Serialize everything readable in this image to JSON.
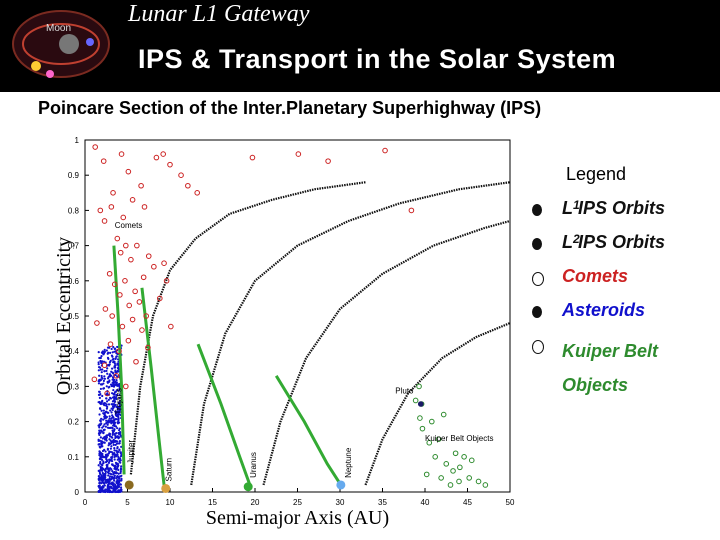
{
  "header": {
    "kicker": "Lunar L1 Gateway",
    "title": "IPS & Transport in the Solar System",
    "logo_label": "Moon"
  },
  "colors": {
    "kuiper": "#2e8b2e",
    "comets": "#cc2222",
    "asteroids": "#1010cc",
    "ips": "#111111",
    "planet_green": "#33aa33"
  },
  "chart_data": {
    "type": "scatter",
    "title": "Poincare Section of the Inter.Planetary Superhighway (IPS)",
    "xlabel": "Semi-major Axis (AU)",
    "ylabel": "Orbital Eccentricity",
    "xlim": [
      0,
      50
    ],
    "ylim": [
      0,
      1
    ],
    "xticks": [
      "0",
      "5",
      "10",
      "15",
      "20",
      "25",
      "30",
      "35",
      "40",
      "45",
      "50"
    ],
    "yticks": [
      "0",
      "0.1",
      "0.2",
      "0.3",
      "0.4",
      "0.5",
      "0.6",
      "0.7",
      "0.8",
      "0.9",
      "1"
    ],
    "annotations": [
      {
        "text": "Comets",
        "x": 3.5,
        "y": 0.75
      },
      {
        "text": "Pluto",
        "x": 36.5,
        "y": 0.28
      },
      {
        "text": "Kuiper Belt Objects",
        "x": 40,
        "y": 0.145
      }
    ],
    "planets": [
      {
        "name": "Jupiter",
        "x": 5.2,
        "y": 0.02,
        "color": "#8a6a20"
      },
      {
        "name": "Saturn",
        "x": 9.5,
        "y": 0.01,
        "color": "#d8a040"
      },
      {
        "name": "Uranus",
        "x": 19.2,
        "y": 0.015,
        "color": "#33aa33"
      },
      {
        "name": "Neptune",
        "x": 30.1,
        "y": 0.02,
        "color": "#66aaee"
      }
    ],
    "rotated_labels": [
      {
        "text": "Trojans",
        "x": 4.3,
        "y": 0.22
      },
      {
        "text": "Jupiter",
        "x": 5.7,
        "y": 0.08
      },
      {
        "text": "Saturn",
        "x": 10.2,
        "y": 0.03
      },
      {
        "text": "Uranus",
        "x": 20.1,
        "y": 0.04
      },
      {
        "text": "Neptune",
        "x": 31.3,
        "y": 0.04
      }
    ],
    "green_tracks": [
      [
        [
          3.4,
          0.7
        ],
        [
          3.9,
          0.5
        ],
        [
          4.3,
          0.3
        ],
        [
          4.6,
          0.05
        ]
      ],
      [
        [
          6.7,
          0.58
        ],
        [
          7.8,
          0.35
        ],
        [
          8.7,
          0.15
        ],
        [
          9.3,
          0.02
        ]
      ],
      [
        [
          13.3,
          0.42
        ],
        [
          16,
          0.25
        ],
        [
          18.2,
          0.1
        ],
        [
          19.4,
          0.02
        ]
      ],
      [
        [
          22.5,
          0.33
        ],
        [
          25.8,
          0.2
        ],
        [
          28.5,
          0.08
        ],
        [
          30.1,
          0.02
        ]
      ]
    ],
    "ips_curves": [
      [
        [
          5.4,
          0.05
        ],
        [
          6.5,
          0.3
        ],
        [
          8,
          0.5
        ],
        [
          10,
          0.63
        ],
        [
          13,
          0.72
        ],
        [
          17,
          0.79
        ],
        [
          22,
          0.83
        ],
        [
          27,
          0.86
        ],
        [
          33,
          0.88
        ]
      ],
      [
        [
          12.5,
          0.02
        ],
        [
          14,
          0.25
        ],
        [
          16.5,
          0.45
        ],
        [
          20,
          0.6
        ],
        [
          25,
          0.7
        ],
        [
          31,
          0.77
        ],
        [
          37,
          0.82
        ],
        [
          44,
          0.86
        ],
        [
          50,
          0.88
        ]
      ],
      [
        [
          21,
          0.02
        ],
        [
          23,
          0.2
        ],
        [
          26,
          0.38
        ],
        [
          30,
          0.52
        ],
        [
          35,
          0.62
        ],
        [
          41,
          0.7
        ],
        [
          47,
          0.75
        ],
        [
          50,
          0.77
        ]
      ],
      [
        [
          33,
          0.02
        ],
        [
          35,
          0.15
        ],
        [
          38,
          0.28
        ],
        [
          42,
          0.38
        ],
        [
          46,
          0.44
        ],
        [
          50,
          0.48
        ]
      ]
    ],
    "comets": [
      [
        1.2,
        0.98
      ],
      [
        2.2,
        0.94
      ],
      [
        4.3,
        0.96
      ],
      [
        5.1,
        0.91
      ],
      [
        6.6,
        0.87
      ],
      [
        7.0,
        0.81
      ],
      [
        8.4,
        0.95
      ],
      [
        9.2,
        0.96
      ],
      [
        10.0,
        0.93
      ],
      [
        11.3,
        0.9
      ],
      [
        12.1,
        0.87
      ],
      [
        13.2,
        0.85
      ],
      [
        19.7,
        0.95
      ],
      [
        25.1,
        0.96
      ],
      [
        28.6,
        0.94
      ],
      [
        35.3,
        0.97
      ],
      [
        38.4,
        0.8
      ],
      [
        1.8,
        0.8
      ],
      [
        2.3,
        0.77
      ],
      [
        3.1,
        0.81
      ],
      [
        3.8,
        0.72
      ],
      [
        4.2,
        0.68
      ],
      [
        4.8,
        0.7
      ],
      [
        5.4,
        0.66
      ],
      [
        6.1,
        0.7
      ],
      [
        6.9,
        0.61
      ],
      [
        7.5,
        0.67
      ],
      [
        8.1,
        0.64
      ],
      [
        9.3,
        0.65
      ],
      [
        2.9,
        0.62
      ],
      [
        3.5,
        0.59
      ],
      [
        4.1,
        0.56
      ],
      [
        4.7,
        0.6
      ],
      [
        5.2,
        0.53
      ],
      [
        5.9,
        0.57
      ],
      [
        6.4,
        0.54
      ],
      [
        7.2,
        0.5
      ],
      [
        2.4,
        0.52
      ],
      [
        3.2,
        0.5
      ],
      [
        4.4,
        0.47
      ],
      [
        5.6,
        0.49
      ],
      [
        6.7,
        0.46
      ],
      [
        3.0,
        0.42
      ],
      [
        4.0,
        0.4
      ],
      [
        5.1,
        0.43
      ],
      [
        7.4,
        0.41
      ],
      [
        2.3,
        0.36
      ],
      [
        3.7,
        0.33
      ],
      [
        6.0,
        0.37
      ],
      [
        2.6,
        0.28
      ],
      [
        4.8,
        0.3
      ],
      [
        1.4,
        0.48
      ],
      [
        1.1,
        0.32
      ],
      [
        8.8,
        0.55
      ],
      [
        9.6,
        0.6
      ],
      [
        10.1,
        0.47
      ],
      [
        3.3,
        0.85
      ],
      [
        4.5,
        0.78
      ],
      [
        5.6,
        0.83
      ]
    ],
    "kuiper": [
      [
        39.3,
        0.3
      ],
      [
        39.6,
        0.25
      ],
      [
        39.4,
        0.21
      ],
      [
        40.5,
        0.14
      ],
      [
        41.2,
        0.1
      ],
      [
        42.5,
        0.08
      ],
      [
        43.3,
        0.06
      ],
      [
        44.1,
        0.07
      ],
      [
        45.2,
        0.04
      ],
      [
        46.3,
        0.03
      ],
      [
        47.1,
        0.02
      ],
      [
        44.6,
        0.1
      ],
      [
        43.0,
        0.02
      ],
      [
        41.9,
        0.04
      ],
      [
        42.2,
        0.22
      ],
      [
        40.2,
        0.05
      ],
      [
        45.5,
        0.09
      ],
      [
        44.0,
        0.03
      ],
      [
        43.6,
        0.11
      ],
      [
        39.7,
        0.18
      ],
      [
        41.6,
        0.15
      ],
      [
        40.8,
        0.2
      ],
      [
        38.9,
        0.26
      ]
    ],
    "pluto": {
      "x": 39.5,
      "y": 0.25
    }
  }
}
